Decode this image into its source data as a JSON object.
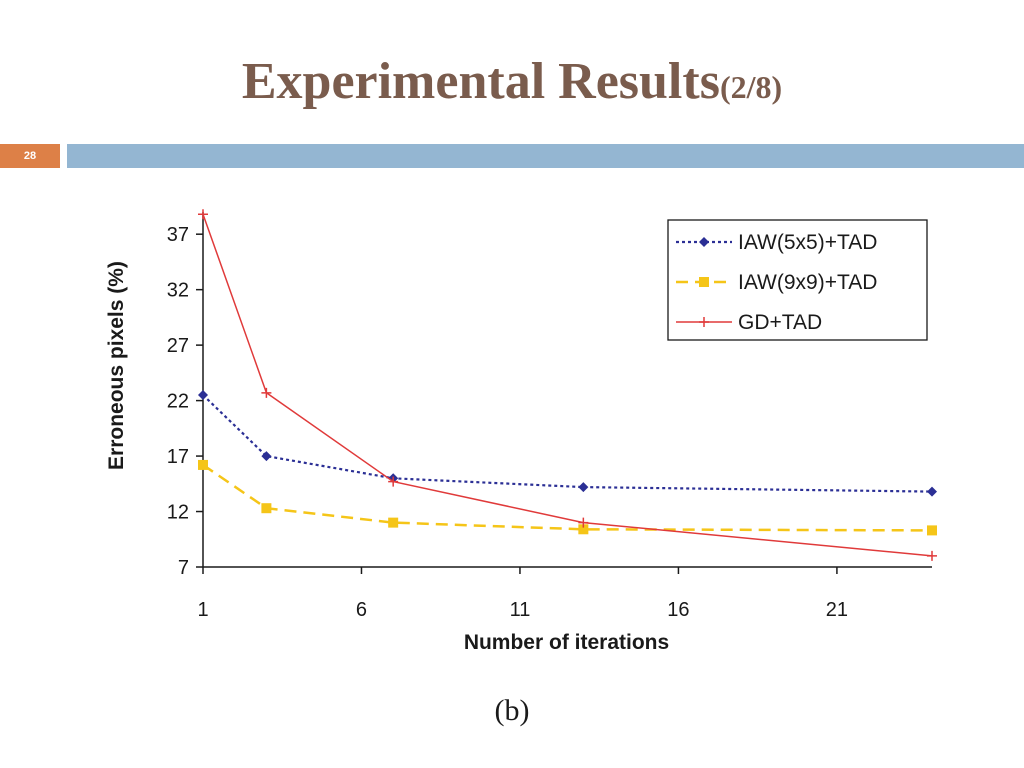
{
  "slide": {
    "title": "Experimental Results",
    "title_suffix": "(2/8)",
    "page_number": "28",
    "caption": "(b)"
  },
  "colors": {
    "title": "#7a5c4d",
    "page_box": "#dd8047",
    "accent_bar": "#94b6d2"
  },
  "chart_data": {
    "type": "line",
    "title": "",
    "xlabel": "Number of iterations",
    "ylabel": "Erroneous pixels (%)",
    "xlim": [
      1,
      24
    ],
    "ylim": [
      7,
      39
    ],
    "x_ticks": [
      1,
      6,
      11,
      16,
      21
    ],
    "y_ticks": [
      7,
      12,
      17,
      22,
      27,
      32,
      37
    ],
    "grid": false,
    "legend_position": "top-right",
    "series": [
      {
        "name": "IAW(5x5)+TAD",
        "color": "#2b2f95",
        "line_style": "dotted",
        "marker": "diamond",
        "x": [
          1,
          3,
          7,
          13,
          24
        ],
        "y": [
          22.5,
          17.0,
          15.0,
          14.2,
          13.8
        ]
      },
      {
        "name": "IAW(9x9)+TAD",
        "color": "#f5c518",
        "line_style": "dashed",
        "marker": "square",
        "x": [
          1,
          3,
          7,
          13,
          24
        ],
        "y": [
          16.2,
          12.3,
          11.0,
          10.4,
          10.3
        ]
      },
      {
        "name": "GD+TAD",
        "color": "#e03a3a",
        "line_style": "solid",
        "marker": "plus",
        "x": [
          1,
          3,
          7,
          13,
          24
        ],
        "y": [
          38.8,
          22.7,
          14.7,
          11.0,
          8.0
        ]
      }
    ]
  }
}
